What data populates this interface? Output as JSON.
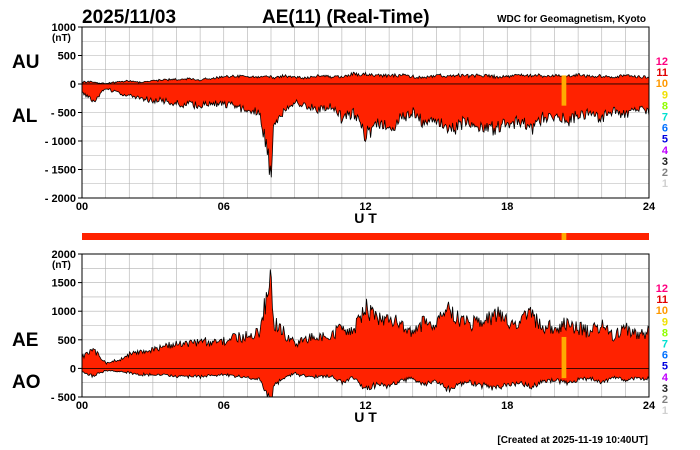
{
  "header": {
    "date": "2025/11/03",
    "title": "AE(11) (Real-Time)",
    "source": "WDC for Geomagnetism, Kyoto"
  },
  "footer": "[Created at 2025-11-19 10:40UT]",
  "color_scale": {
    "labels": [
      "12",
      "11",
      "10",
      "9",
      "8",
      "7",
      "6",
      "5",
      "4",
      "3",
      "2",
      "1"
    ],
    "colors": [
      "#ff0080",
      "#e00000",
      "#ff9900",
      "#f0e000",
      "#90ff00",
      "#00e0d0",
      "#0070ff",
      "#0000e0",
      "#c000ff",
      "#202020",
      "#808080",
      "#d0d0d0"
    ]
  },
  "chart_data": [
    {
      "type": "area",
      "series": [
        {
          "name": "AU"
        },
        {
          "name": "AL"
        }
      ],
      "unit": "(nT)",
      "ylim": [
        -2000,
        1000
      ],
      "yticks": [
        1000,
        500,
        0,
        -500,
        -1000,
        -1500,
        -2000
      ],
      "ytick_labels": [
        "1000",
        "500",
        "0",
        "- 500",
        "- 1000",
        "- 1500",
        "- 2000"
      ],
      "xlim": [
        0,
        24
      ],
      "xticks": [
        0,
        6,
        12,
        18,
        24
      ],
      "xtick_labels": [
        "00",
        "06",
        "12",
        "18",
        "24"
      ],
      "xlabel": "U T",
      "grid": true,
      "x_hours": [
        0,
        0.5,
        1,
        1.5,
        2,
        2.5,
        3,
        3.5,
        4,
        4.5,
        5,
        5.5,
        6,
        6.5,
        7,
        7.5,
        7.9,
        8.0,
        8.1,
        8.5,
        9,
        9.5,
        10,
        10.5,
        11,
        11.5,
        12,
        12.5,
        13,
        13.5,
        14,
        14.5,
        15,
        15.5,
        16,
        16.5,
        17,
        17.5,
        18,
        18.5,
        19,
        19.5,
        20,
        20.5,
        21,
        21.5,
        22,
        22.5,
        23,
        23.5,
        24
      ],
      "AU": [
        40,
        30,
        10,
        40,
        50,
        30,
        60,
        70,
        80,
        90,
        80,
        100,
        120,
        130,
        140,
        120,
        130,
        120,
        100,
        140,
        120,
        110,
        150,
        130,
        120,
        170,
        170,
        150,
        140,
        160,
        130,
        120,
        150,
        140,
        160,
        140,
        150,
        130,
        140,
        150,
        150,
        140,
        150,
        130,
        160,
        140,
        140,
        120,
        150,
        130,
        130
      ],
      "AL": [
        -150,
        -300,
        -80,
        -150,
        -200,
        -250,
        -280,
        -300,
        -350,
        -360,
        -380,
        -350,
        -350,
        -400,
        -450,
        -500,
        -1200,
        -1750,
        -700,
        -500,
        -300,
        -400,
        -450,
        -400,
        -600,
        -500,
        -900,
        -700,
        -800,
        -600,
        -500,
        -700,
        -600,
        -900,
        -700,
        -650,
        -750,
        -800,
        -700,
        -650,
        -800,
        -600,
        -550,
        -650,
        -550,
        -500,
        -600,
        -450,
        -550,
        -450,
        -500
      ],
      "missing_hours": [
        20.3,
        20.5
      ]
    },
    {
      "type": "area",
      "series": [
        {
          "name": "AE"
        },
        {
          "name": "AO"
        }
      ],
      "unit": "(nT)",
      "ylim": [
        -500,
        2000
      ],
      "yticks": [
        2000,
        1500,
        1000,
        500,
        0,
        -500
      ],
      "ytick_labels": [
        "2000",
        "1500",
        "1000",
        "500",
        "0",
        "- 500"
      ],
      "xlim": [
        0,
        24
      ],
      "xticks": [
        0,
        6,
        12,
        18,
        24
      ],
      "xtick_labels": [
        "00",
        "06",
        "12",
        "18",
        "24"
      ],
      "xlabel": "U T",
      "grid": true,
      "x_hours": [
        0,
        0.5,
        1,
        1.5,
        2,
        2.5,
        3,
        3.5,
        4,
        4.5,
        5,
        5.5,
        6,
        6.5,
        7,
        7.5,
        7.9,
        8.0,
        8.1,
        8.5,
        9,
        9.5,
        10,
        10.5,
        11,
        11.5,
        12,
        12.5,
        13,
        13.5,
        14,
        14.5,
        15,
        15.5,
        16,
        16.5,
        17,
        17.5,
        18,
        18.5,
        19,
        19.5,
        20,
        20.5,
        21,
        21.5,
        22,
        22.5,
        23,
        23.5,
        24
      ],
      "AE": [
        200,
        320,
        100,
        130,
        250,
        280,
        340,
        370,
        430,
        450,
        460,
        450,
        470,
        530,
        590,
        620,
        1400,
        1850,
        800,
        640,
        420,
        510,
        600,
        530,
        720,
        670,
        1050,
        850,
        940,
        760,
        630,
        820,
        750,
        1040,
        860,
        790,
        900,
        930,
        840,
        800,
        950,
        740,
        700,
        780,
        710,
        640,
        740,
        570,
        700,
        580,
        630
      ],
      "AO": [
        -60,
        -135,
        -35,
        -55,
        -75,
        -110,
        -110,
        -115,
        -135,
        -135,
        -150,
        -125,
        -115,
        -135,
        -155,
        -190,
        -535,
        -815,
        -300,
        -180,
        -90,
        -145,
        -150,
        -135,
        -240,
        -165,
        -365,
        -275,
        -330,
        -220,
        -185,
        -290,
        -225,
        -380,
        -270,
        -255,
        -300,
        -335,
        -280,
        -250,
        -325,
        -230,
        -200,
        -260,
        -195,
        -180,
        -230,
        -165,
        -200,
        -160,
        -185
      ],
      "missing_hours": [
        20.3,
        20.5
      ]
    }
  ]
}
